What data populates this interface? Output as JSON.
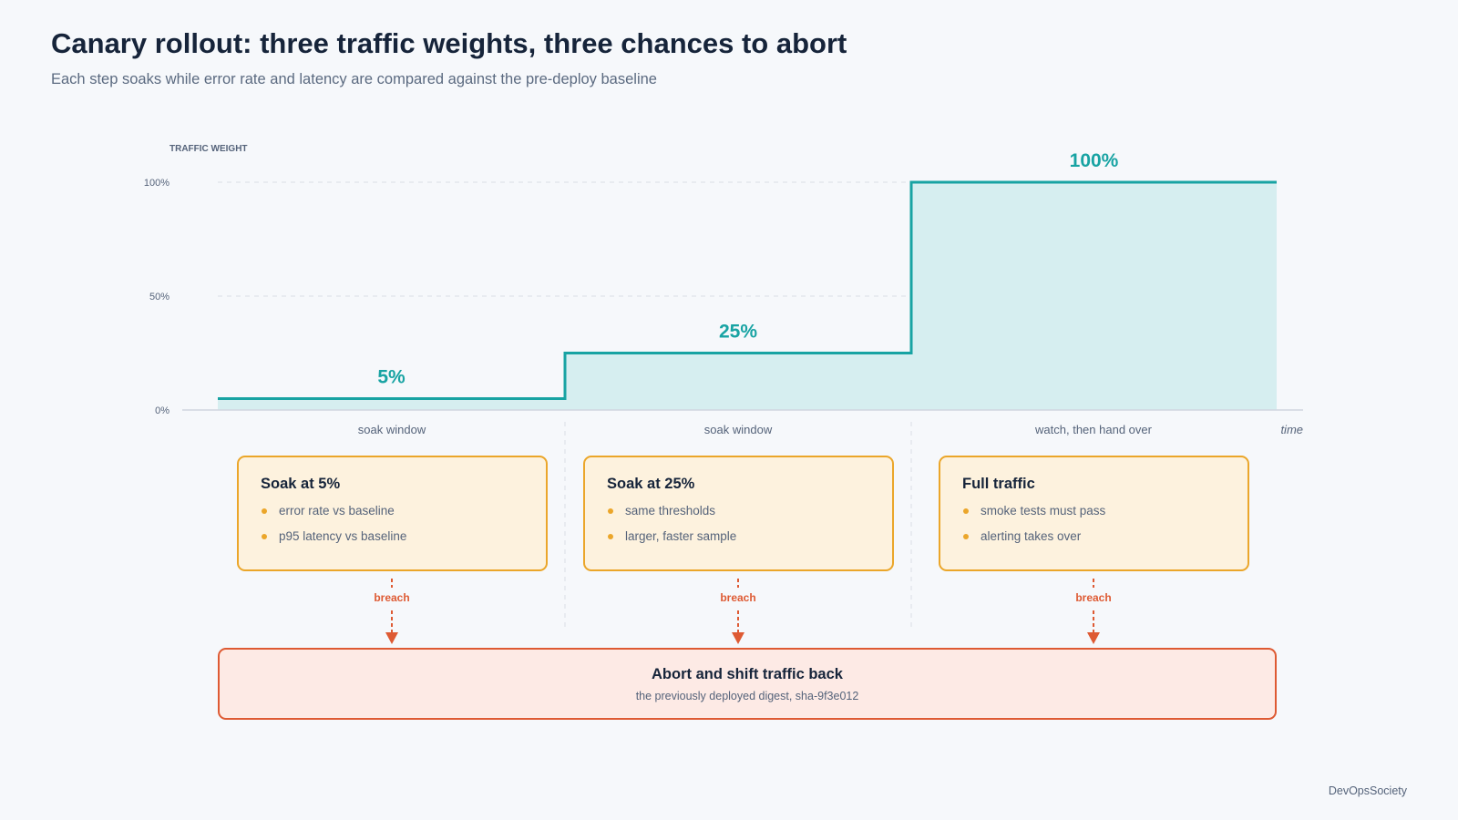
{
  "title": "Canary rollout: three traffic weights, three chances to abort",
  "subtitle": "Each step soaks while error rate and latency are compared against the pre-deploy baseline",
  "chart": {
    "y_axis_label": "TRAFFIC WEIGHT",
    "y_ticks": [
      "0%",
      "50%",
      "100%"
    ],
    "x_axis_label": "time",
    "steps": [
      {
        "weight": 5,
        "label": "5%",
        "phase_label": "soak window"
      },
      {
        "weight": 25,
        "label": "25%",
        "phase_label": "soak window"
      },
      {
        "weight": 100,
        "label": "100%",
        "phase_label": "watch, then hand over"
      }
    ],
    "colors": {
      "line": "#18a3a3",
      "fill": "#d6eef0",
      "grid": "#d9dee6",
      "breach": "#de5a33"
    }
  },
  "cards": [
    {
      "title": "Soak at 5%",
      "items": [
        "error rate vs baseline",
        "p95 latency vs baseline"
      ],
      "breach_label": "breach"
    },
    {
      "title": "Soak at 25%",
      "items": [
        "same thresholds",
        "larger, faster sample"
      ],
      "breach_label": "breach"
    },
    {
      "title": "Full traffic",
      "items": [
        "smoke tests must pass",
        "alerting takes over"
      ],
      "breach_label": "breach"
    }
  ],
  "abort": {
    "title": "Abort and shift traffic back",
    "subtitle": "the previously deployed digest, sha-9f3e012"
  },
  "brand": "DevOpsSociety"
}
